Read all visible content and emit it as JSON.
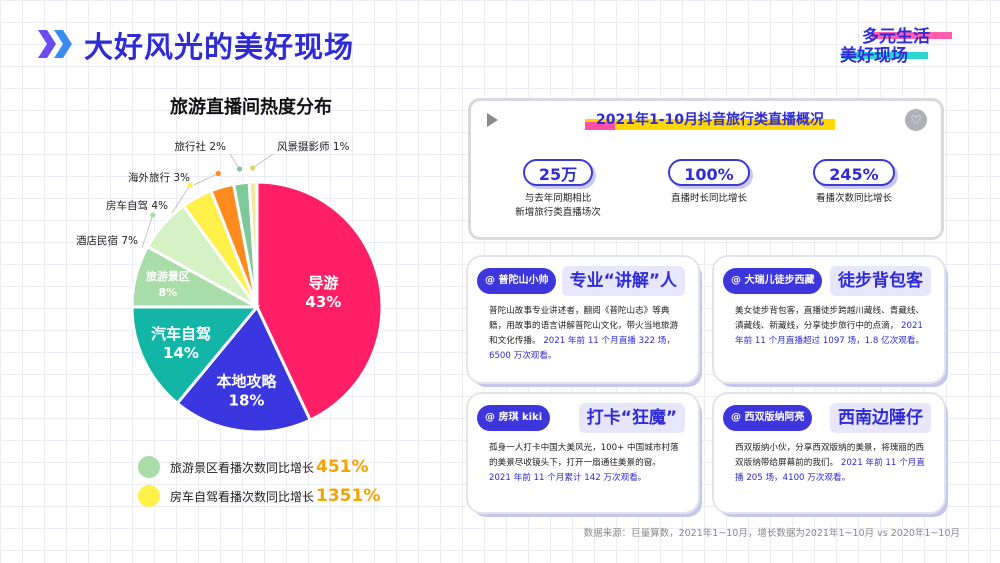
{
  "header": {
    "title": "大好风光的美好现场",
    "logo_line1": "多元生活",
    "logo_line2": "美好现场"
  },
  "chart_data": {
    "type": "pie",
    "title": "旅游直播间热度分布",
    "slices": [
      {
        "label": "导游",
        "value": 43,
        "display": "43%",
        "color": "#ff1f66"
      },
      {
        "label": "本地攻略",
        "value": 18,
        "display": "18%",
        "color": "#3a37e0"
      },
      {
        "label": "汽车自驾",
        "value": 14,
        "display": "14%",
        "color": "#13b5a6"
      },
      {
        "label": "旅游景区",
        "value": 8,
        "display": "8%",
        "color": "#a8dca8"
      },
      {
        "label": "酒店民宿",
        "value": 7,
        "display": "7%",
        "color": "#d5f2c4"
      },
      {
        "label": "房车自驾",
        "value": 4,
        "display": "4%",
        "color": "#fff04a"
      },
      {
        "label": "海外旅行",
        "value": 3,
        "display": "3%",
        "color": "#ff8a1e"
      },
      {
        "label": "旅行社",
        "value": 2,
        "display": "2%",
        "color": "#7ec899"
      },
      {
        "label": "风景摄影师",
        "value": 1,
        "display": "1%",
        "color": "#f4e8a0"
      }
    ]
  },
  "growth": [
    {
      "label": "旅游景区看播次数同比增长",
      "value": "451%",
      "color": "#a8dca8"
    },
    {
      "label": "房车自驾看播次数同比增长",
      "value": "1351%",
      "color": "#fff04a"
    }
  ],
  "overview": {
    "title": "2021年1-10月抖音旅行类直播概况",
    "stats": [
      {
        "value": "25万",
        "desc1": "与去年同期相比",
        "desc2": "新增旅行类直播场次"
      },
      {
        "value": "100%",
        "desc1": "直播时长同比增长",
        "desc2": ""
      },
      {
        "value": "245%",
        "desc1": "看播次数同比增长",
        "desc2": ""
      }
    ]
  },
  "cards": [
    {
      "handle": "@ 普陀山小帅",
      "title": "专业“讲解”人",
      "body": "普陀山故事专业讲述者，翻阅《普陀山志》等典籍，用故事的语言讲解普陀山文化，带火当地旅游和文化传播。",
      "highlight": "2021 年前 11 个月直播 322 场，6500 万次观看。"
    },
    {
      "handle": "@ 大瑞儿徒步西藏",
      "title": "徒步背包客",
      "body": "美女徒步背包客，直播徒步跨越川藏线、青藏线、滇藏线、新藏线，分享徒步旅行中的点滴，",
      "highlight": "2021 年前 11 个月直播超过 1097 场，1.8 亿次观看。"
    },
    {
      "handle": "@ 房琪 kiki",
      "title": "打卡“狂魔”",
      "body": "孤身一人打卡中国大美风光，100+ 中国城市村落的美景尽收镜头下，打开一扇通往美景的窗。",
      "highlight": "2021 年前 11 个月累计 142 万次观看。"
    },
    {
      "handle": "@ 西双版纳阿亮",
      "title": "西南边陲仔",
      "body": "西双版纳小伙，分享西双版纳的美景，将瑰丽的西双版纳带给屏幕前的我们。",
      "highlight": "2021 年前 11 个月直播 205 场，4100 万次观看。"
    }
  ],
  "source": "数据来源：巨量算数，2021年1~10月，增长数据为2021年1~10月 vs 2020年1~10月"
}
